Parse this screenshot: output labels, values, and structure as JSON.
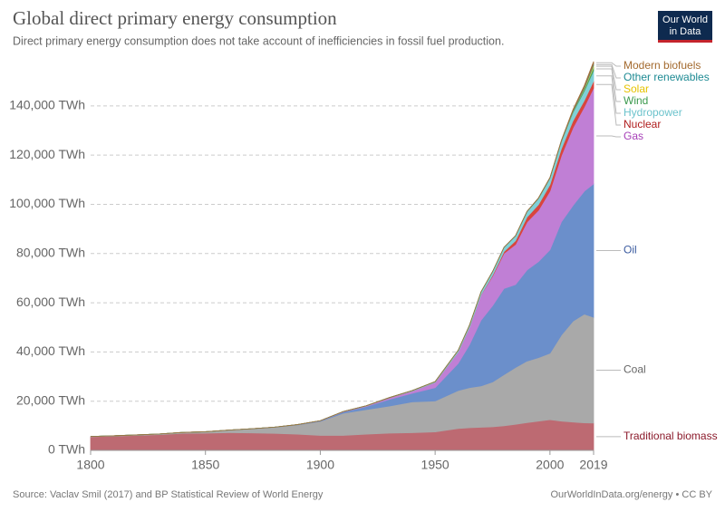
{
  "chart_data": {
    "type": "stacked_area",
    "title": "Global direct primary energy consumption",
    "subtitle": "Direct primary energy consumption does not take account of inefficiencies in fossil fuel production.",
    "source": "Source: Vaclav Smil (2017) and BP Statistical Review of World Energy",
    "credit": "OurWorldInData.org/energy • CC BY",
    "logo": [
      "Our World",
      "in Data"
    ],
    "x": [
      1800,
      1810,
      1820,
      1830,
      1840,
      1850,
      1860,
      1870,
      1880,
      1890,
      1900,
      1910,
      1920,
      1930,
      1940,
      1950,
      1960,
      1965,
      1970,
      1975,
      1980,
      1985,
      1990,
      1995,
      2000,
      2005,
      2010,
      2015,
      2019
    ],
    "xlim": [
      1800,
      2019
    ],
    "xticks": [
      1800,
      1850,
      1900,
      1950,
      2000,
      2019
    ],
    "ylim": [
      0,
      158000
    ],
    "yticks": [
      {
        "value": 0,
        "label": "0 TWh"
      },
      {
        "value": 20000,
        "label": "20,000 TWh"
      },
      {
        "value": 40000,
        "label": "40,000 TWh"
      },
      {
        "value": 60000,
        "label": "60,000 TWh"
      },
      {
        "value": 80000,
        "label": "80,000 TWh"
      },
      {
        "value": 100000,
        "label": "100,000 TWh"
      },
      {
        "value": 120000,
        "label": "120,000 TWh"
      },
      {
        "value": 140000,
        "label": "140,000 TWh"
      }
    ],
    "grid": true,
    "series": [
      {
        "name": "Traditional biomass",
        "color": "#bd6a72",
        "label_color": "#8b1a2b",
        "values": [
          5556,
          5800,
          6100,
          6400,
          6900,
          7000,
          7200,
          7100,
          6900,
          6600,
          6100,
          6100,
          6600,
          7000,
          7200,
          7500,
          8900,
          9200,
          9400,
          9600,
          10000,
          10600,
          11300,
          11900,
          12500,
          11900,
          11500,
          11200,
          11100
        ]
      },
      {
        "name": "Coal",
        "color": "#a9a9a9",
        "label_color": "#666666",
        "values": [
          97,
          130,
          180,
          280,
          400,
          570,
          1050,
          1700,
          2500,
          3700,
          5700,
          9000,
          10000,
          11000,
          12500,
          12600,
          15400,
          16300,
          16800,
          18200,
          20800,
          23100,
          25000,
          25800,
          27000,
          35000,
          41000,
          44200,
          43000
        ]
      },
      {
        "name": "Oil",
        "color": "#6b8fcb",
        "label_color": "#3b5ba0",
        "values": [
          0,
          0,
          0,
          0,
          0,
          0,
          0,
          6,
          50,
          100,
          180,
          500,
          1200,
          2700,
          3500,
          5400,
          11000,
          17500,
          26700,
          31000,
          35000,
          33700,
          37000,
          39000,
          42000,
          46000,
          47000,
          50000,
          54200
        ]
      },
      {
        "name": "Gas",
        "color": "#c07fd5",
        "label_color": "#a63fb8",
        "values": [
          0,
          0,
          0,
          0,
          0,
          0,
          0,
          0,
          0,
          70,
          70,
          160,
          250,
          600,
          900,
          2100,
          4600,
          7000,
          10300,
          12000,
          14300,
          16300,
          19500,
          20900,
          23900,
          27000,
          31600,
          34300,
          39000
        ]
      },
      {
        "name": "Nuclear",
        "color": "#d9453d",
        "label_color": "#b01d1d",
        "values": [
          0,
          0,
          0,
          0,
          0,
          0,
          0,
          0,
          0,
          0,
          0,
          0,
          0,
          0,
          0,
          0,
          0,
          20,
          80,
          380,
          700,
          1500,
          2000,
          2300,
          2580,
          2770,
          2770,
          2570,
          2800
        ]
      },
      {
        "name": "Hydropower",
        "color": "#7fd0d8",
        "label_color": "#6cc3cc",
        "values": [
          0,
          0,
          0,
          0,
          0,
          0,
          0,
          0,
          0,
          0,
          0,
          30,
          70,
          130,
          190,
          340,
          690,
          920,
          1170,
          1450,
          1720,
          1980,
          2190,
          2500,
          2650,
          2930,
          3440,
          3870,
          4220
        ]
      },
      {
        "name": "Wind",
        "color": "#4fa55f",
        "label_color": "#3c9a4e",
        "values": [
          0,
          0,
          0,
          0,
          0,
          0,
          0,
          0,
          0,
          0,
          0,
          0,
          0,
          0,
          0,
          0,
          0,
          0,
          0,
          0,
          0,
          0,
          4,
          8,
          31,
          104,
          342,
          831,
          1430
        ]
      },
      {
        "name": "Solar",
        "color": "#f4d03f",
        "label_color": "#e6c300",
        "values": [
          0,
          0,
          0,
          0,
          0,
          0,
          0,
          0,
          0,
          0,
          0,
          0,
          0,
          0,
          0,
          0,
          0,
          0,
          0,
          0,
          0,
          0,
          0,
          0,
          1,
          4,
          32,
          256,
          720
        ]
      },
      {
        "name": "Other renewables",
        "color": "#3a9aa0",
        "label_color": "#1d8a93",
        "values": [
          0,
          0,
          0,
          0,
          0,
          0,
          0,
          0,
          0,
          0,
          0,
          0,
          0,
          0,
          0,
          0,
          0,
          0,
          10,
          20,
          40,
          70,
          100,
          120,
          150,
          200,
          300,
          450,
          590
        ]
      },
      {
        "name": "Modern biofuels",
        "color": "#a0703c",
        "label_color": "#a36a2e",
        "values": [
          0,
          0,
          0,
          0,
          0,
          0,
          0,
          0,
          0,
          0,
          0,
          0,
          0,
          0,
          0,
          0,
          0,
          0,
          0,
          0,
          0,
          30,
          70,
          90,
          110,
          200,
          500,
          700,
          1000
        ]
      }
    ]
  }
}
